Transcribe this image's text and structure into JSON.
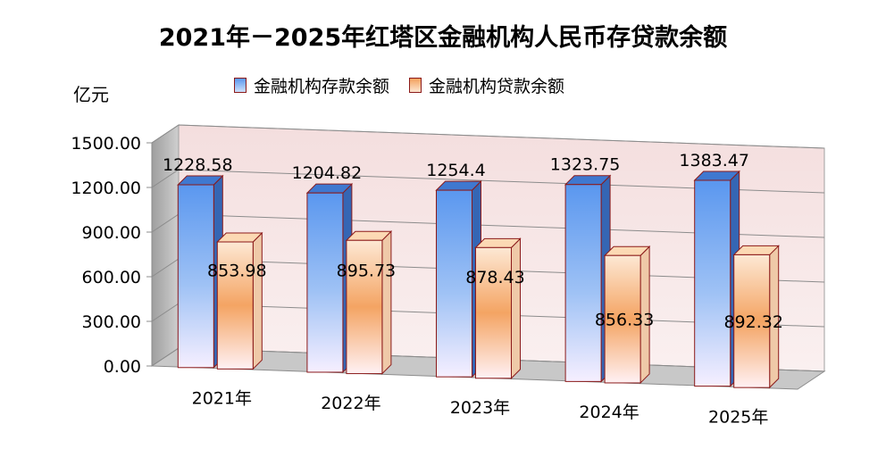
{
  "chart_data": {
    "type": "bar",
    "title": "2021年－2025年红塔区金融机构人民币存贷款余额",
    "ylabel": "亿元",
    "categories": [
      "2021年",
      "2022年",
      "2023年",
      "2024年",
      "2025年"
    ],
    "series": [
      {
        "name": "金融机构存款余额",
        "values": [
          1228.58,
          1204.82,
          1254.4,
          1323.75,
          1383.47
        ],
        "labels": [
          "1228.58",
          "1204.82",
          "1254.4",
          "1323.75",
          "1383.47"
        ],
        "color": "#5a97ef"
      },
      {
        "name": "金融机构贷款余额",
        "values": [
          853.98,
          895.73,
          878.43,
          856.33,
          892.32
        ],
        "labels": [
          "853.98",
          "895.73",
          "878.43",
          "856.33",
          "892.32"
        ],
        "color": "#f3a15d"
      }
    ],
    "y_ticks": [
      "0.00",
      "300.00",
      "600.00",
      "900.00",
      "1200.00",
      "1500.00"
    ],
    "ylim": [
      0,
      1500
    ],
    "grid": true,
    "legend_position": "top",
    "style": "3d-clustered-column",
    "wall_color": "#f6e3e3",
    "floor_color": "#c8c8c8",
    "border_color": "#8b1a1a"
  }
}
